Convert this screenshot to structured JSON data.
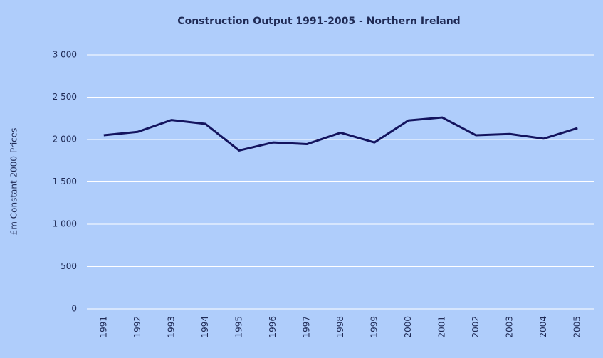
{
  "chart_data": {
    "type": "line",
    "title": "Construction Output 1991-2005 - Northern Ireland",
    "y_label": "£m Constant 2000 Prices",
    "categories": [
      "1991",
      "1992",
      "1993",
      "1994",
      "1995",
      "1996",
      "1997",
      "1998",
      "1999",
      "2000",
      "2001",
      "2002",
      "2003",
      "2004",
      "2005"
    ],
    "values": [
      2050,
      2090,
      2230,
      2185,
      1870,
      1965,
      1945,
      2080,
      1965,
      2225,
      2260,
      2050,
      2065,
      2010,
      2135
    ],
    "color": "#14145e",
    "ylim": [
      0,
      3000
    ],
    "yticks": [
      0,
      500,
      {
        "value": 1000,
        "label": "1 000"
      },
      {
        "value": 1500,
        "label": "1 500"
      },
      {
        "value": 2000,
        "label": "2 000"
      },
      {
        "value": 2500,
        "label": "2 500"
      },
      {
        "value": 3000,
        "label": "3 000"
      }
    ],
    "grid": true
  }
}
